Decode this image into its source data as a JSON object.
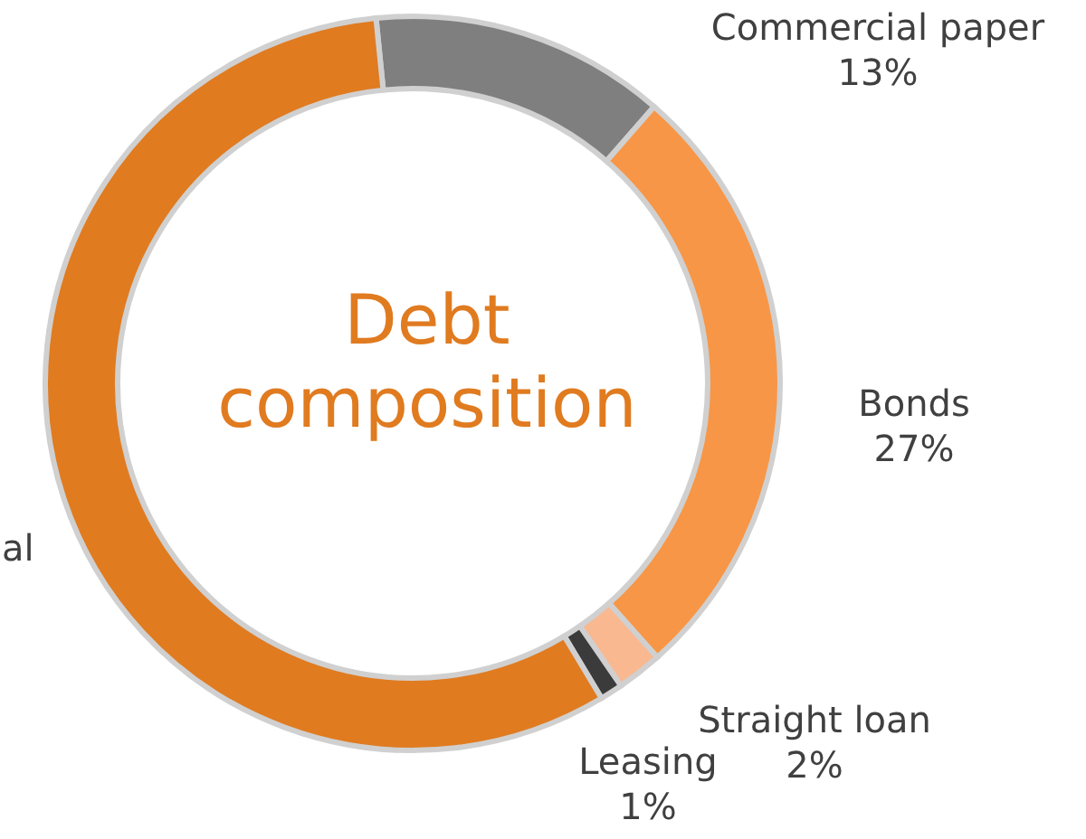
{
  "chart_data": {
    "type": "donut",
    "title": "Debt composition",
    "categories": [
      "Commercial paper",
      "Bonds",
      "Straight loan",
      "Leasing",
      "al"
    ],
    "values": [
      13,
      27,
      2,
      1,
      57
    ],
    "colors": [
      "#7f7f7f",
      "#f79646",
      "#f9b890",
      "#3b3b3b",
      "#e07b20"
    ],
    "value_labels": [
      "13%",
      "27%",
      "2%",
      "1%",
      null
    ]
  }
}
